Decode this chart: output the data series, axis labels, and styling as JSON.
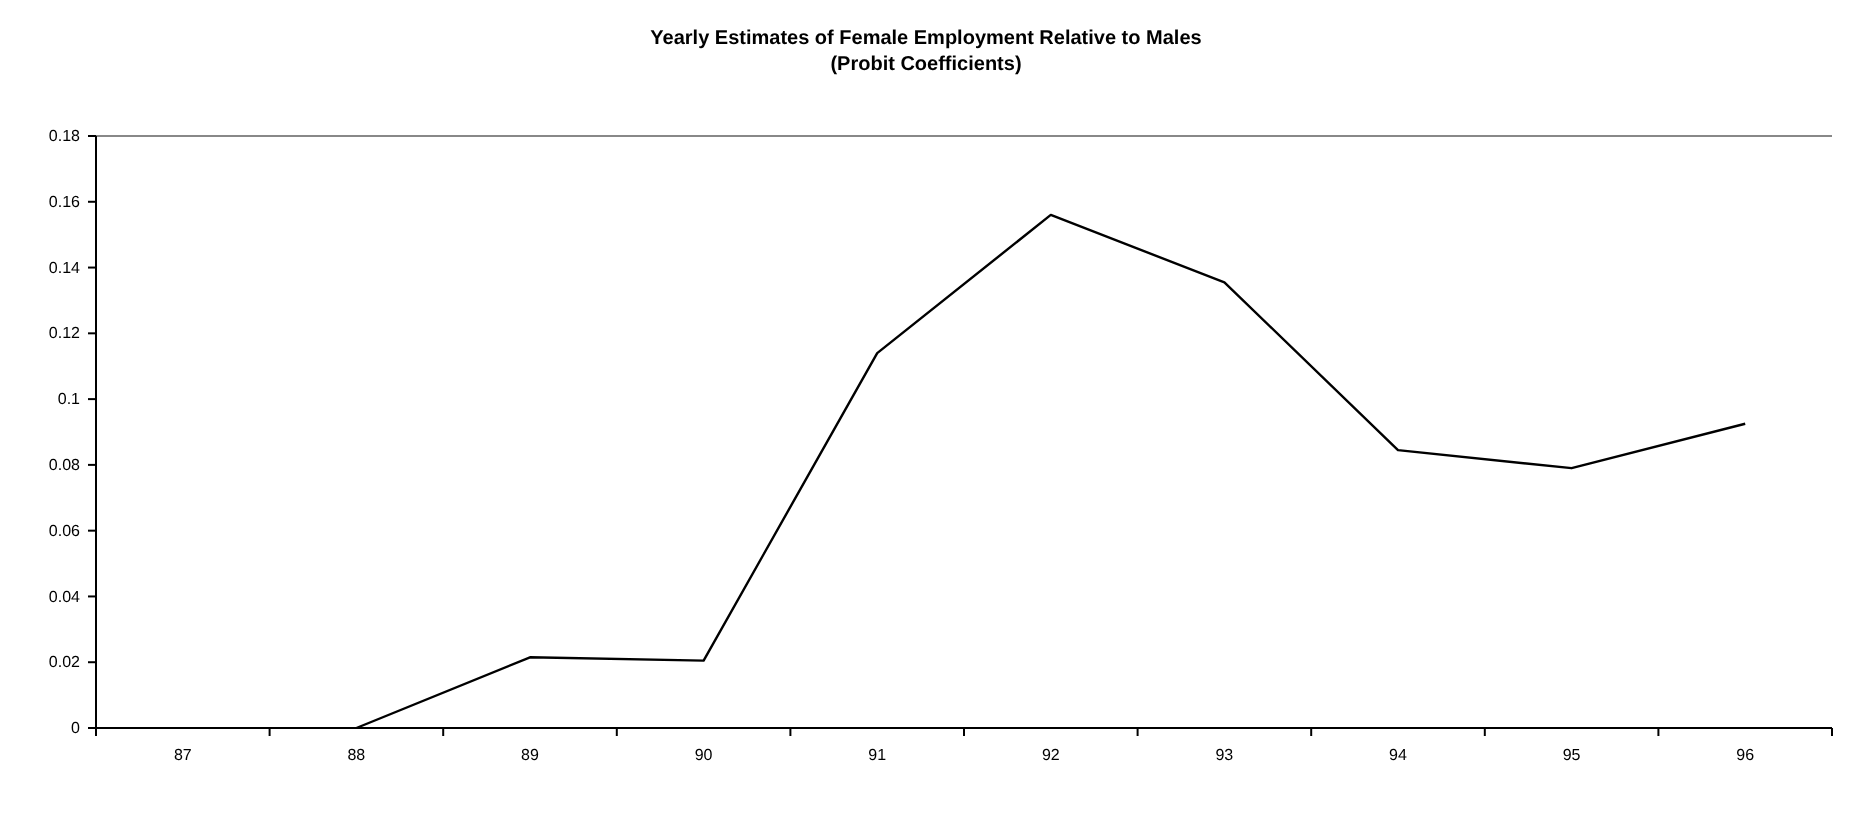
{
  "chart_data": {
    "type": "line",
    "title": "Yearly Estimates of Female Employment Relative to Males",
    "subtitle": "(Probit Coefficients)",
    "categories": [
      "87",
      "88",
      "89",
      "90",
      "91",
      "92",
      "93",
      "94",
      "95",
      "96"
    ],
    "series": [
      {
        "color": "#000000",
        "values": [
          null,
          0,
          0.0215,
          0.0205,
          0.114,
          0.156,
          0.1355,
          0.0845,
          0.079,
          0.0925
        ]
      }
    ],
    "ylim": [
      0,
      0.18
    ],
    "yticks": [
      0,
      0.02,
      0.04,
      0.06,
      0.08,
      0.1,
      0.12,
      0.14,
      0.16,
      0.18
    ],
    "grid": false,
    "marker": "none",
    "line_style": "solid"
  }
}
